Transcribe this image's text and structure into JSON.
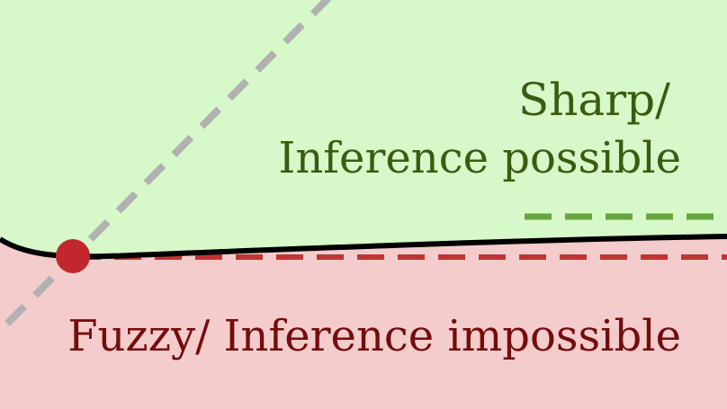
{
  "regions": {
    "sharp": {
      "line1": "Sharp/",
      "line2": "Inference possible",
      "fill_color": "#d7f8c8",
      "text_color": "#3b5b10"
    },
    "fuzzy": {
      "label": "Fuzzy/ Inference impossible",
      "fill_color": "#f4cccc",
      "text_color": "#750c0c"
    }
  },
  "colors": {
    "boundary": "#000000",
    "diagonal_dashed": "#b1b1b1",
    "sharp_threshold_dashed": "#67a53e",
    "fuzzy_threshold_dashed": "#c03434",
    "critical_point": "#c2272d"
  },
  "icons": {
    "critical_point": "filled-circle"
  }
}
